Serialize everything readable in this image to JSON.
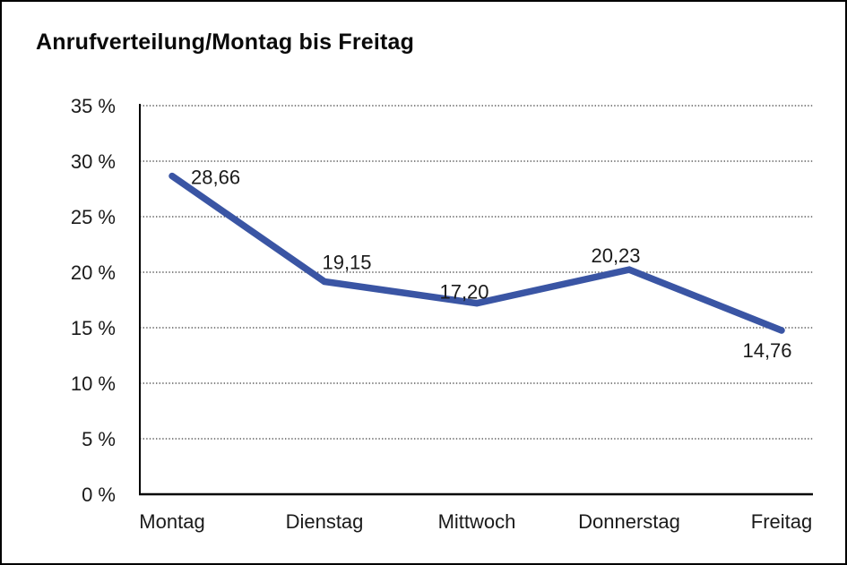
{
  "title": "Anrufverteilung/Montag bis Freitag",
  "chart_data": {
    "type": "line",
    "title": "Anrufverteilung/Montag bis Freitag",
    "categories": [
      "Montag",
      "Dienstag",
      "Mittwoch",
      "Donnerstag",
      "Freitag"
    ],
    "values": [
      28.66,
      19.15,
      17.2,
      20.23,
      14.76
    ],
    "value_labels": [
      "28,66",
      "19,15",
      "17,20",
      "20,23",
      "14,76"
    ],
    "series_name": "Anrufverteilung",
    "xlabel": "",
    "ylabel": "",
    "ylim": [
      0,
      35
    ],
    "y_step": 5,
    "y_tick_labels": [
      "0 %",
      "5 %",
      "10 %",
      "15 %",
      "20 %",
      "25 %",
      "30 %",
      "35 %"
    ],
    "y_tick_suffix": " %",
    "grid": "horizontal-dotted",
    "legend_position": "none",
    "line_color": "#3A55A4",
    "axis_color": "#000000",
    "grid_color": "#3d3d3d",
    "text_color": "#1a1a1a",
    "background_color": "#ffffff"
  }
}
